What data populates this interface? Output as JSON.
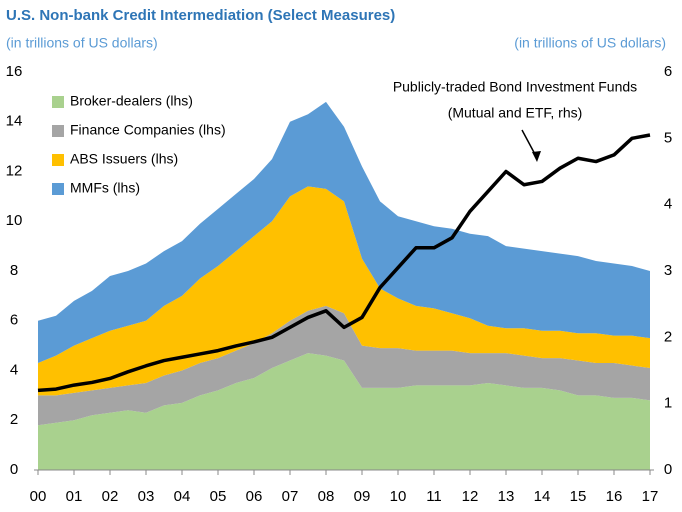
{
  "chart_data": {
    "type": "stacked_area_line",
    "title": "U.S. Non-bank Credit Intermediation (Select Measures)",
    "y_label": "(in trillions of US dollars)",
    "y2_label": "(in trillions of US dollars)",
    "annotation": [
      "Publicly-traded Bond Investment Funds",
      "(Mutual and ETF, rhs)"
    ],
    "legend": "upper left",
    "grid": false,
    "x": [
      0,
      0.5,
      1,
      1.5,
      2,
      2.5,
      3,
      3.5,
      4,
      4.5,
      5,
      5.5,
      6,
      6.5,
      7,
      7.5,
      8,
      8.5,
      9,
      9.5,
      10,
      10.5,
      11,
      11.5,
      12,
      12.5,
      13,
      13.5,
      14,
      14.5,
      15,
      15.5,
      16,
      16.5,
      17
    ],
    "xlim": [
      0,
      17
    ],
    "xticks": [
      {
        "value": 0,
        "label": "00"
      },
      {
        "value": 1,
        "label": "01"
      },
      {
        "value": 2,
        "label": "02"
      },
      {
        "value": 3,
        "label": "03"
      },
      {
        "value": 4,
        "label": "04"
      },
      {
        "value": 5,
        "label": "05"
      },
      {
        "value": 6,
        "label": "06"
      },
      {
        "value": 7,
        "label": "07"
      },
      {
        "value": 8,
        "label": "08"
      },
      {
        "value": 9,
        "label": "09"
      },
      {
        "value": 10,
        "label": "10"
      },
      {
        "value": 11,
        "label": "11"
      },
      {
        "value": 12,
        "label": "12"
      },
      {
        "value": 13,
        "label": "13"
      },
      {
        "value": 14,
        "label": "14"
      },
      {
        "value": 15,
        "label": "15"
      },
      {
        "value": 16,
        "label": "16"
      },
      {
        "value": 17,
        "label": "17"
      }
    ],
    "ylim": [
      0,
      16
    ],
    "yticks": [
      0,
      2,
      4,
      6,
      8,
      10,
      12,
      14,
      16
    ],
    "y2lim": [
      0,
      6
    ],
    "y2ticks": [
      0,
      1,
      2,
      3,
      4,
      5,
      6
    ],
    "series": [
      {
        "name": "Broker-dealers (lhs)",
        "color": "#a9d18e",
        "kind": "area",
        "values": [
          1.8,
          1.9,
          2.0,
          2.2,
          2.3,
          2.4,
          2.3,
          2.6,
          2.7,
          3.0,
          3.2,
          3.5,
          3.7,
          4.1,
          4.4,
          4.7,
          4.6,
          4.4,
          3.3,
          3.3,
          3.3,
          3.4,
          3.4,
          3.4,
          3.4,
          3.5,
          3.4,
          3.3,
          3.3,
          3.2,
          3.0,
          3.0,
          2.9,
          2.9,
          2.8
        ]
      },
      {
        "name": "Finance Companies (lhs)",
        "color": "#a5a5a5",
        "kind": "area",
        "values": [
          1.2,
          1.1,
          1.1,
          1.0,
          1.0,
          1.0,
          1.2,
          1.2,
          1.3,
          1.3,
          1.3,
          1.3,
          1.4,
          1.4,
          1.6,
          1.7,
          2.0,
          1.9,
          1.7,
          1.6,
          1.6,
          1.4,
          1.4,
          1.4,
          1.3,
          1.2,
          1.3,
          1.3,
          1.2,
          1.3,
          1.4,
          1.3,
          1.4,
          1.3,
          1.3
        ]
      },
      {
        "name": "ABS Issuers (lhs)",
        "color": "#ffc000",
        "kind": "area",
        "values": [
          1.3,
          1.6,
          1.9,
          2.1,
          2.3,
          2.4,
          2.5,
          2.8,
          3.0,
          3.4,
          3.7,
          4.0,
          4.3,
          4.5,
          5.0,
          5.0,
          4.7,
          4.5,
          3.5,
          2.4,
          2.0,
          1.8,
          1.7,
          1.5,
          1.4,
          1.1,
          1.0,
          1.1,
          1.1,
          1.1,
          1.1,
          1.2,
          1.1,
          1.2,
          1.2
        ]
      },
      {
        "name": "MMFs (lhs)",
        "color": "#5b9bd5",
        "kind": "area",
        "values": [
          1.7,
          1.6,
          1.8,
          1.9,
          2.2,
          2.2,
          2.3,
          2.2,
          2.2,
          2.2,
          2.3,
          2.3,
          2.3,
          2.5,
          3.0,
          2.9,
          3.5,
          3.0,
          3.7,
          3.5,
          3.3,
          3.4,
          3.3,
          3.4,
          3.4,
          3.6,
          3.3,
          3.2,
          3.2,
          3.1,
          3.1,
          2.9,
          2.9,
          2.8,
          2.7
        ]
      },
      {
        "color": "#000000",
        "kind": "line",
        "axis": "y2",
        "values": [
          1.2,
          1.22,
          1.28,
          1.32,
          1.38,
          1.48,
          1.57,
          1.65,
          1.7,
          1.75,
          1.8,
          1.87,
          1.93,
          2.0,
          2.15,
          2.3,
          2.4,
          2.15,
          2.3,
          2.75,
          3.05,
          3.35,
          3.35,
          3.5,
          3.9,
          4.2,
          4.5,
          4.3,
          4.35,
          4.55,
          4.7,
          4.65,
          4.75,
          5.0,
          5.05
        ]
      }
    ]
  }
}
